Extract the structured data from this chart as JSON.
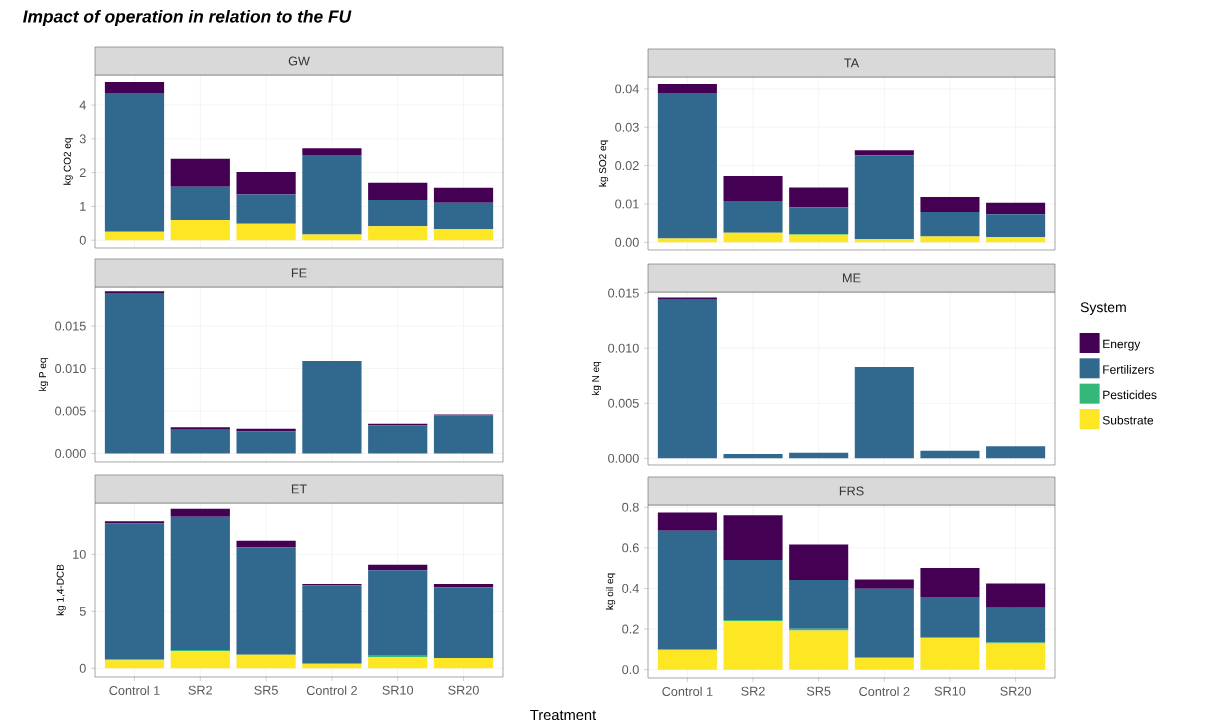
{
  "chart_data": [
    {
      "type": "bar",
      "stacked": true,
      "title": "GW",
      "ylabel": "kg CO2 eq",
      "annotations": [
        "Impact of operation in relation to the FU"
      ],
      "categories": [
        null,
        null,
        null,
        null,
        null,
        null
      ],
      "ylim": [
        -0.23,
        4.89
      ],
      "yticks": [
        0,
        1,
        2,
        3,
        4
      ],
      "grid": true,
      "legend": false,
      "tick_labels": "y",
      "series": [
        {
          "color": "#fde725",
          "values": [
            0.25,
            0.6,
            0.49,
            0.17,
            0.41,
            0.33
          ]
        },
        {
          "color": "#35b779",
          "values": [
            0,
            0,
            0,
            0,
            0,
            0
          ]
        },
        {
          "color": "#31688e",
          "values": [
            4.11,
            0.98,
            0.86,
            2.35,
            0.78,
            0.78
          ]
        },
        {
          "color": "#440154",
          "values": [
            0.32,
            0.83,
            0.67,
            0.2,
            0.51,
            0.44
          ]
        }
      ]
    },
    {
      "type": "bar",
      "stacked": true,
      "title": "TA",
      "ylabel": "kg SO2 eq",
      "categories": [
        null,
        null,
        null,
        null,
        null,
        null
      ],
      "ylim": [
        -0.002,
        0.0431
      ],
      "yticks": [
        {
          "value": 0,
          "label": "0.00"
        },
        {
          "value": 0.01,
          "label": "0.01"
        },
        {
          "value": 0.02,
          "label": "0.02"
        },
        {
          "value": 0.03,
          "label": "0.03"
        },
        {
          "value": 0.04,
          "label": "0.04"
        }
      ],
      "grid": true,
      "legend": false,
      "tick_labels": "y",
      "series": [
        {
          "color": "#fde725",
          "values": [
            0.001,
            0.0025,
            0.002,
            0.0008,
            0.0015,
            0.0014
          ]
        },
        {
          "color": "#35b779",
          "values": [
            0,
            0,
            0.0002,
            0,
            null,
            null
          ]
        },
        {
          "color": "#31688e",
          "values": [
            0.0379,
            0.0083,
            0.0069,
            0.0219,
            0.0064,
            0.0059
          ]
        },
        {
          "color": "#440154",
          "values": [
            0.0024,
            0.0065,
            0.0052,
            0.0013,
            0.0039,
            0.003
          ]
        }
      ]
    },
    {
      "type": "bar",
      "stacked": true,
      "title": "FE",
      "ylabel": "kg P eq",
      "categories": [
        null,
        null,
        null,
        null,
        null,
        null
      ],
      "ylim": [
        -0.001,
        0.0196
      ],
      "yticks": [
        {
          "value": 0,
          "label": "0.000"
        },
        {
          "value": 0.005,
          "label": "0.005"
        },
        {
          "value": 0.01,
          "label": "0.010"
        },
        {
          "value": 0.015,
          "label": "0.015"
        }
      ],
      "grid": true,
      "legend": false,
      "tick_labels": "y",
      "series": [
        {
          "color": "#fde725",
          "values": [
            0,
            0,
            0,
            0,
            0,
            0
          ]
        },
        {
          "color": "#35b779",
          "values": [
            0,
            0,
            0,
            0,
            0,
            0
          ]
        },
        {
          "color": "#31688e",
          "values": [
            0.0189,
            0.0028,
            0.0026,
            0.0109,
            0.0033,
            0.0045
          ]
        },
        {
          "color": "#440154",
          "values": [
            0.0002,
            0.0003,
            0.0003,
            0,
            0.0002,
            0.0001
          ]
        }
      ]
    },
    {
      "type": "bar",
      "stacked": true,
      "title": "ME",
      "ylabel": "kg N eq",
      "legend_title": "System",
      "categories": [
        null,
        null,
        null,
        null,
        null,
        null
      ],
      "ylim": [
        -0.0006,
        0.0151
      ],
      "yticks": [
        {
          "value": 0,
          "label": "0.000"
        },
        {
          "value": 0.005,
          "label": "0.005"
        },
        {
          "value": 0.01,
          "label": "0.010"
        },
        {
          "value": 0.015,
          "label": "0.015"
        }
      ],
      "grid": true,
      "legend": "right",
      "tick_labels": "y",
      "series": [
        {
          "name": "Substrate",
          "color": "#fde725",
          "values": [
            0,
            0,
            0,
            0,
            0,
            0
          ]
        },
        {
          "name": "Pesticides",
          "color": "#35b779",
          "values": [
            0,
            0,
            0,
            0,
            0,
            0
          ]
        },
        {
          "name": "Fertilizers",
          "color": "#31688e",
          "values": [
            0.0144,
            0.0004,
            0.0005,
            0.0083,
            0.0007,
            0.0011
          ]
        },
        {
          "name": "Energy",
          "color": "#440154",
          "values": [
            0.0002,
            0,
            0,
            0,
            0,
            0
          ]
        }
      ]
    },
    {
      "type": "bar",
      "stacked": true,
      "title": "ET",
      "ylabel": "kg 1,4-DCB",
      "xlabel": "Treatment",
      "categories": [
        "Control 1",
        "SR2",
        "SR5",
        "Control 2",
        "SR10",
        "SR20"
      ],
      "ylim": [
        -0.76,
        14.51
      ],
      "yticks": [
        0,
        5,
        10
      ],
      "grid": true,
      "legend": false,
      "series": [
        {
          "color": "#fde725",
          "values": [
            0.7,
            1.5,
            1.2,
            0.4,
            1.0,
            0.9
          ]
        },
        {
          "color": "#35b779",
          "values": [
            0.1,
            0.1,
            null,
            0,
            0.1,
            0
          ]
        },
        {
          "color": "#31688e",
          "values": [
            11.9,
            11.7,
            9.4,
            6.9,
            7.5,
            6.2
          ]
        },
        {
          "color": "#440154",
          "values": [
            0.2,
            0.7,
            0.6,
            0.1,
            0.5,
            0.3
          ]
        }
      ]
    },
    {
      "type": "bar",
      "stacked": true,
      "title": "FRS",
      "ylabel": "kg oil eq",
      "categories": [
        "Control 1",
        "SR2",
        "SR5",
        "Control 2",
        "SR10",
        "SR20"
      ],
      "ylim": [
        -0.041,
        0.811
      ],
      "yticks": [
        {
          "value": 0,
          "label": "0.0"
        },
        {
          "value": 0.2,
          "label": "0.2"
        },
        {
          "value": 0.4,
          "label": "0.4"
        },
        {
          "value": 0.6,
          "label": "0.6"
        },
        {
          "value": 0.8,
          "label": "0.8"
        }
      ],
      "grid": true,
      "legend": false,
      "series": [
        {
          "color": "#fde725",
          "values": [
            0.098,
            0.24,
            0.193,
            0.059,
            0.157,
            0.129
          ]
        },
        {
          "color": "#35b779",
          "values": [
            0,
            0.005,
            0.009,
            0,
            0,
            0.005
          ]
        },
        {
          "color": "#31688e",
          "values": [
            0.586,
            0.295,
            0.24,
            0.339,
            0.201,
            0.171
          ]
        },
        {
          "color": "#440154",
          "values": [
            0.09,
            0.221,
            0.175,
            0.046,
            0.143,
            0.119
          ]
        }
      ]
    }
  ]
}
